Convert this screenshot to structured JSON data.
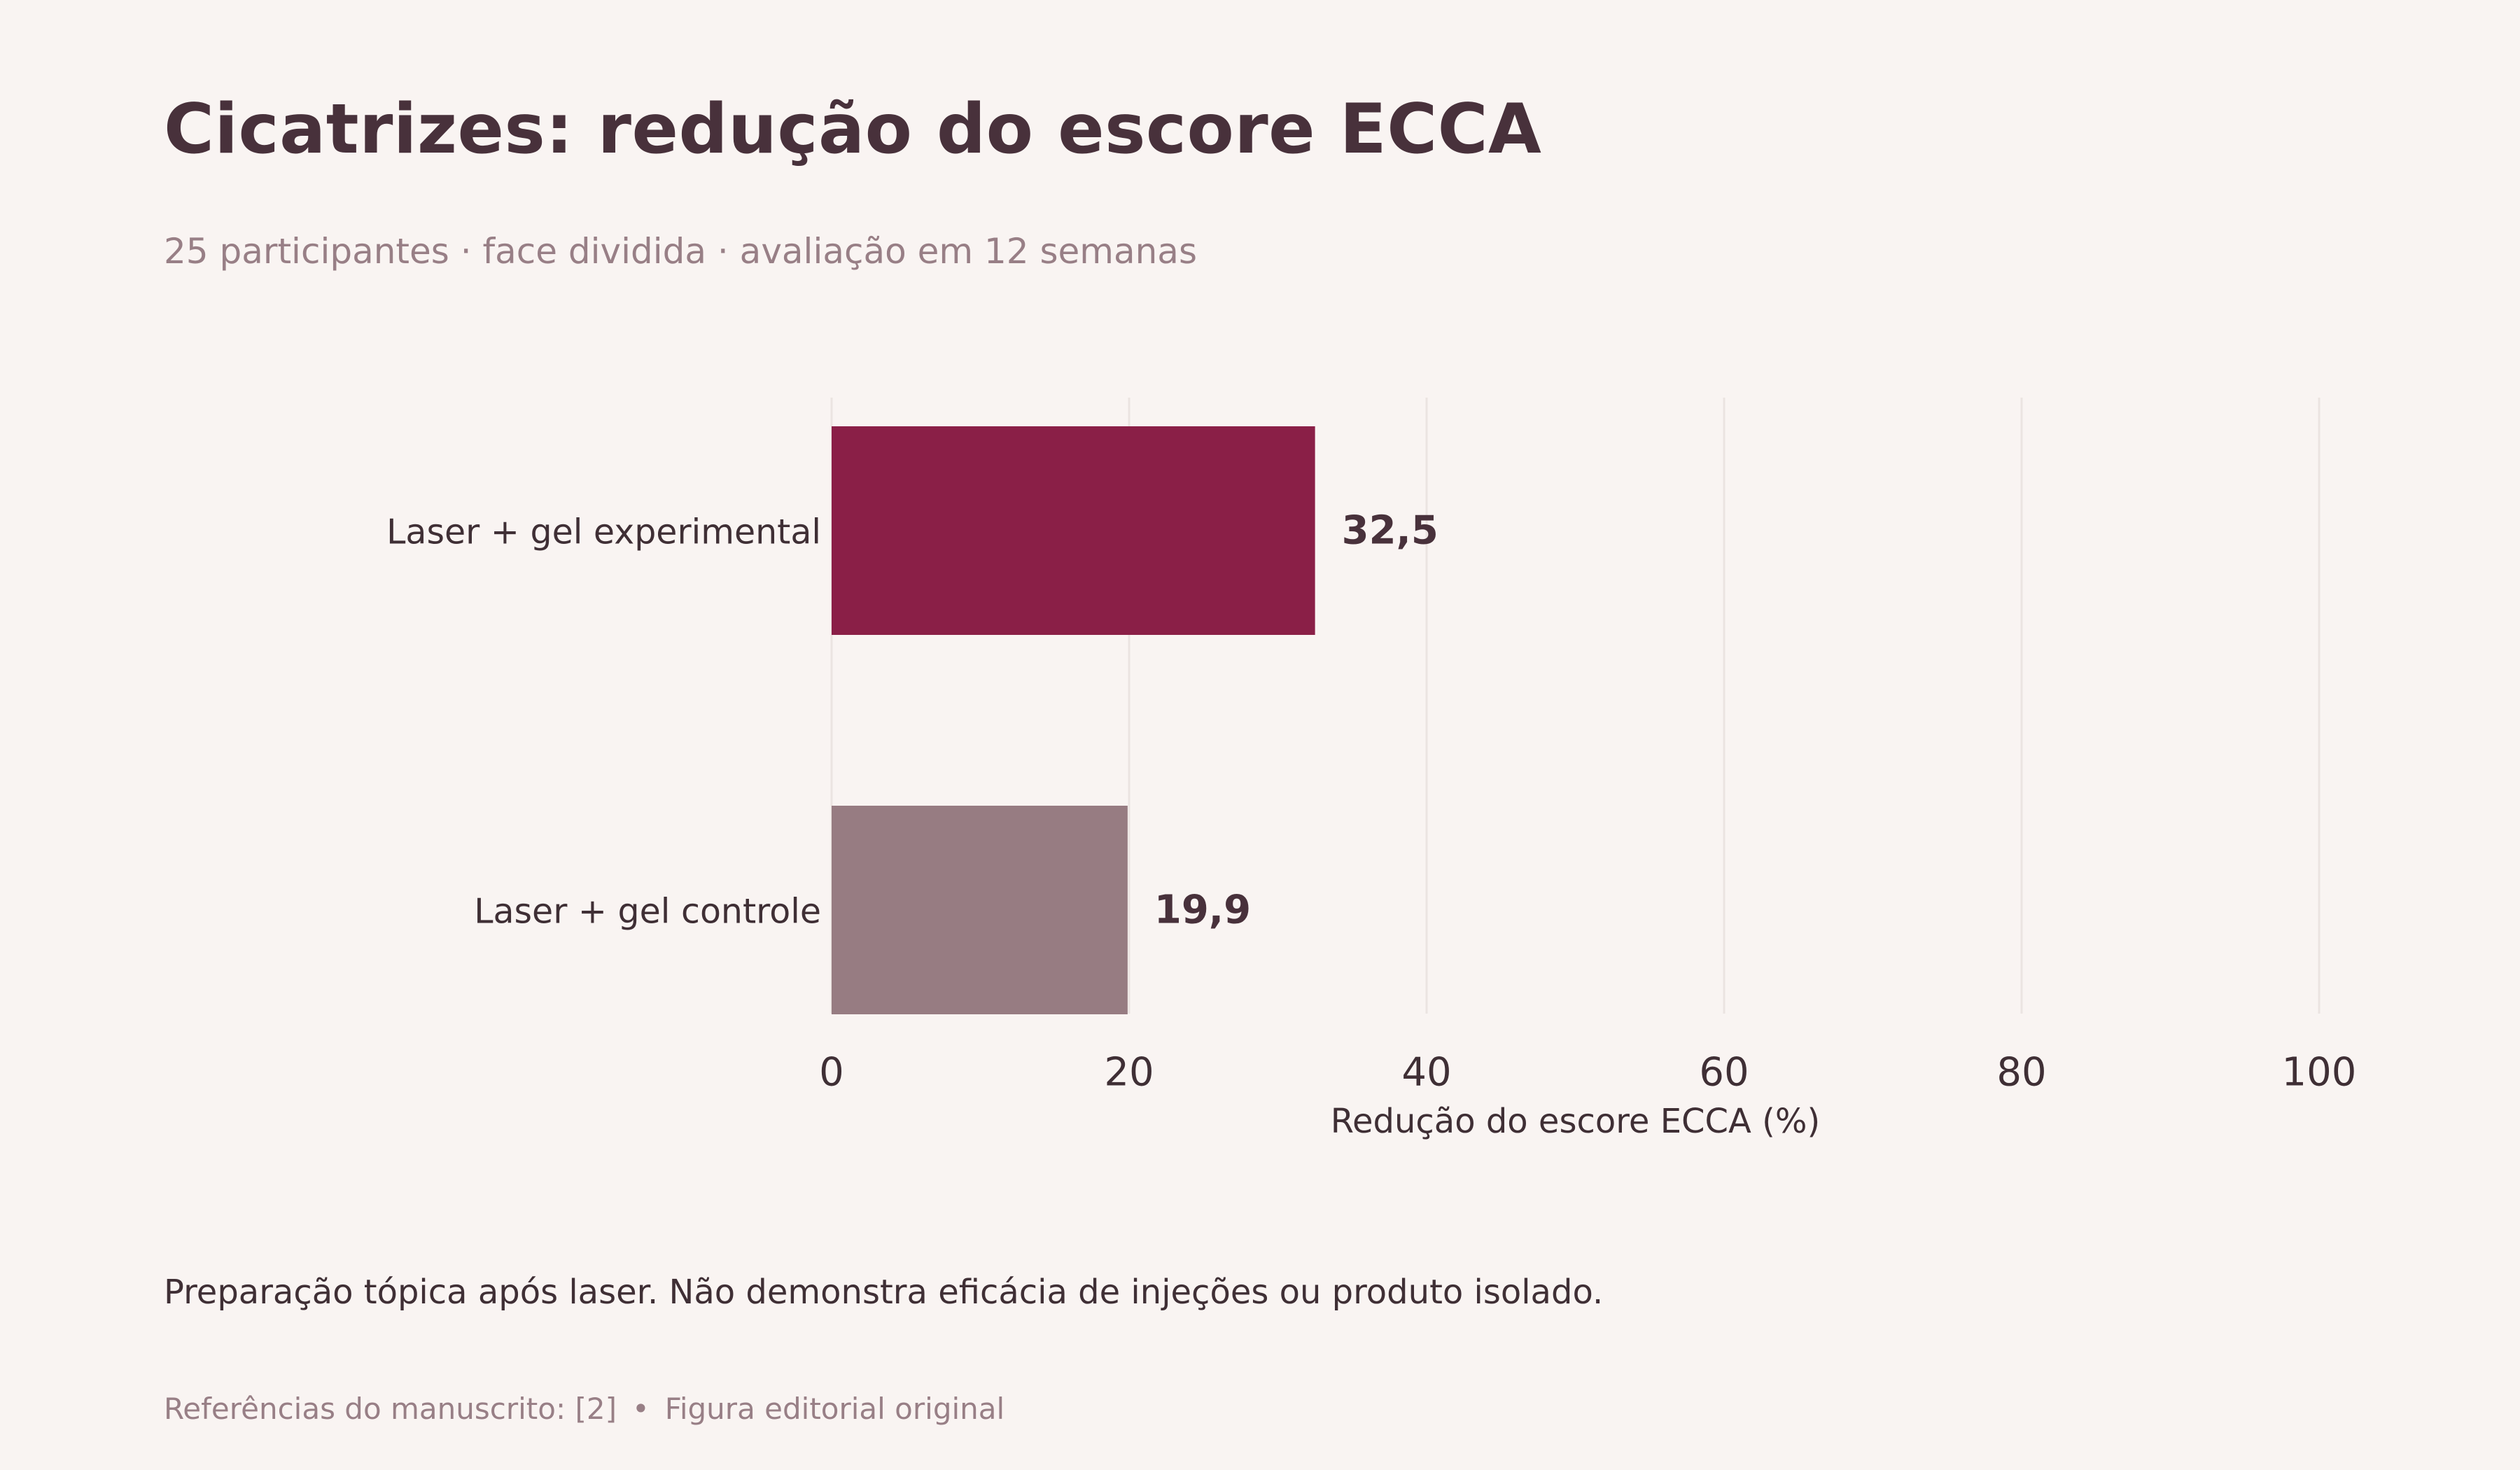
{
  "header": {
    "title": "Cicatrizes: redução do escore ECCA",
    "subtitle": "25 participantes · face dividida · avaliação em 12 semanas"
  },
  "chart_data": {
    "type": "bar",
    "orientation": "horizontal",
    "categories": [
      "Laser + gel experimental",
      "Laser + gel controle"
    ],
    "values": [
      32.5,
      19.9
    ],
    "value_labels": [
      "32,5",
      "19,9"
    ],
    "colors": [
      "#8a1f47",
      "#977c82"
    ],
    "xlabel": "Redução do escore ECCA (%)",
    "xlim": [
      0,
      100
    ],
    "xticks": [
      0,
      20,
      40,
      60,
      80,
      100
    ],
    "xtick_labels": [
      "0",
      "20",
      "40",
      "60",
      "80",
      "100"
    ],
    "grid": "vertical"
  },
  "note": "Preparação tópica após laser. Não demonstra eficácia de injeções ou produto isolado.",
  "footer": {
    "references": "Referências do manuscrito: [2]",
    "separator": "•",
    "credit": "Figura editorial original"
  }
}
